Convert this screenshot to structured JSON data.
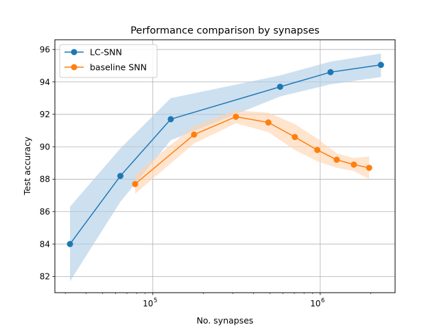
{
  "chart_data": {
    "type": "line",
    "title": "Performance comparison by synapses",
    "xlabel": "No. synapses",
    "ylabel": "Test accuracy",
    "xscale": "log",
    "xlim": [
      26000,
      2800000
    ],
    "ylim": [
      81,
      96.6
    ],
    "grid": true,
    "legend_position": "top-left",
    "x_ticks": [
      {
        "value": 100000,
        "base": "10",
        "exp": "5"
      },
      {
        "value": 1000000,
        "base": "10",
        "exp": "6"
      }
    ],
    "y_ticks": [
      82,
      84,
      86,
      88,
      90,
      92,
      94,
      96
    ],
    "series": [
      {
        "name": "LC-SNN",
        "color": "#1f77b4",
        "band_color": "#aecde6",
        "x": [
          32000,
          64000,
          128000,
          576000,
          1152000,
          2304000
        ],
        "y": [
          84.0,
          88.2,
          91.7,
          93.7,
          94.6,
          95.05
        ],
        "lower": [
          81.7,
          86.6,
          90.4,
          93.1,
          93.85,
          94.3
        ],
        "upper": [
          86.3,
          89.9,
          93.0,
          94.4,
          95.25,
          95.75
        ]
      },
      {
        "name": "baseline SNN",
        "color": "#ff7f0e",
        "band_color": "#ffd3b0",
        "x": [
          78400,
          176400,
          313600,
          490000,
          705600,
          960400,
          1254400,
          1587600,
          1960000
        ],
        "y": [
          87.7,
          90.75,
          91.85,
          91.5,
          90.6,
          89.8,
          89.2,
          88.9,
          88.7
        ],
        "lower": [
          87.1,
          90.2,
          91.45,
          90.9,
          89.8,
          89.1,
          88.7,
          88.5,
          88.0
        ],
        "upper": [
          88.3,
          91.3,
          92.25,
          92.1,
          91.4,
          90.5,
          89.6,
          89.3,
          89.4
        ]
      }
    ]
  }
}
